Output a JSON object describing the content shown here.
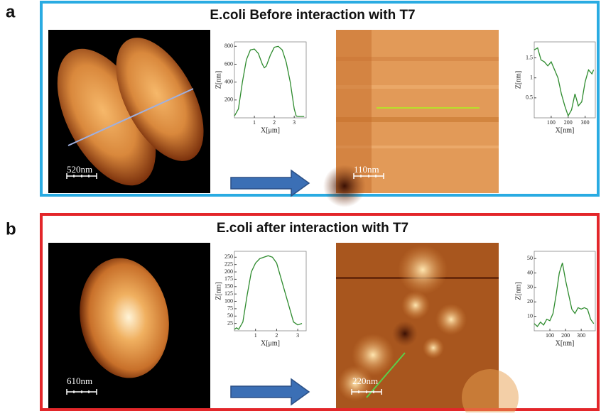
{
  "panels": [
    {
      "label": "a",
      "title": "E.coli Before interaction with T7",
      "scale_bars": [
        "520nm",
        "110nm"
      ]
    },
    {
      "label": "b",
      "title": "E.coli after interaction with T7",
      "scale_bars": [
        "610nm",
        "220nm"
      ]
    }
  ],
  "chart_data": [
    {
      "type": "line",
      "x_label": "X[μm]",
      "y_label": "Z[nm]",
      "color": "#2e8b2e",
      "x": [
        0,
        0.2,
        0.4,
        0.6,
        0.8,
        1.0,
        1.2,
        1.4,
        1.5,
        1.6,
        1.8,
        2.0,
        2.2,
        2.4,
        2.6,
        2.8,
        3.0,
        3.1,
        3.2,
        3.5
      ],
      "values": [
        20,
        100,
        400,
        650,
        760,
        770,
        720,
        600,
        560,
        580,
        700,
        790,
        800,
        760,
        620,
        400,
        100,
        20,
        15,
        15
      ],
      "xlim": [
        0,
        3.6
      ],
      "xticks": [
        1,
        2,
        3
      ],
      "ylim": [
        0,
        850
      ],
      "yticks": [
        200,
        400,
        600,
        800
      ]
    },
    {
      "type": "line",
      "x_label": "X[nm]",
      "y_label": "Z[nm]",
      "color": "#2e8b2e",
      "x": [
        0,
        20,
        40,
        60,
        80,
        100,
        120,
        140,
        160,
        180,
        200,
        220,
        240,
        260,
        280,
        300,
        320,
        340,
        350
      ],
      "values": [
        1.7,
        1.75,
        1.45,
        1.4,
        1.3,
        1.4,
        1.2,
        1.0,
        0.6,
        0.3,
        0.05,
        0.2,
        0.6,
        0.3,
        0.4,
        0.9,
        1.2,
        1.1,
        1.2
      ],
      "xlim": [
        0,
        360
      ],
      "xticks": [
        100,
        200,
        300
      ],
      "ylim": [
        0,
        1.9
      ],
      "yticks": [
        0.5,
        1,
        1.5
      ]
    },
    {
      "type": "line",
      "x_label": "X[μm]",
      "y_label": "Z[nm]",
      "color": "#2e8b2e",
      "x": [
        0,
        0.1,
        0.2,
        0.4,
        0.6,
        0.8,
        1.0,
        1.2,
        1.4,
        1.6,
        1.8,
        2.0,
        2.2,
        2.4,
        2.6,
        2.8,
        3.0,
        3.2
      ],
      "values": [
        5,
        10,
        5,
        30,
        120,
        200,
        230,
        245,
        250,
        255,
        250,
        230,
        180,
        130,
        80,
        30,
        20,
        25
      ],
      "xlim": [
        0,
        3.4
      ],
      "xticks": [
        1,
        2,
        3
      ],
      "ylim": [
        0,
        270
      ],
      "yticks": [
        25,
        50,
        75,
        100,
        125,
        150,
        175,
        200,
        225,
        250
      ]
    },
    {
      "type": "line",
      "x_label": "X[nm]",
      "y_label": "Z[nm]",
      "color": "#2e8b2e",
      "x": [
        0,
        20,
        40,
        60,
        80,
        100,
        120,
        140,
        160,
        180,
        200,
        220,
        240,
        260,
        280,
        300,
        320,
        340,
        360,
        380
      ],
      "values": [
        5,
        3,
        6,
        4,
        8,
        7,
        12,
        25,
        40,
        47,
        35,
        25,
        15,
        12,
        16,
        15,
        16,
        15,
        8,
        5
      ],
      "xlim": [
        0,
        390
      ],
      "xticks": [
        100,
        200,
        300
      ],
      "ylim": [
        0,
        55
      ],
      "yticks": [
        10,
        20,
        30,
        40,
        50
      ]
    }
  ]
}
